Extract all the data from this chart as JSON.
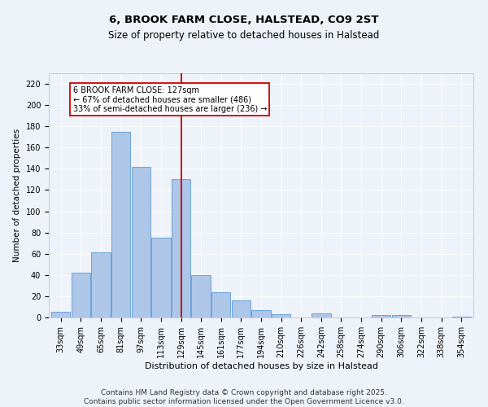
{
  "title": "6, BROOK FARM CLOSE, HALSTEAD, CO9 2ST",
  "subtitle": "Size of property relative to detached houses in Halstead",
  "xlabel": "Distribution of detached houses by size in Halstead",
  "ylabel": "Number of detached properties",
  "categories": [
    "33sqm",
    "49sqm",
    "65sqm",
    "81sqm",
    "97sqm",
    "113sqm",
    "129sqm",
    "145sqm",
    "161sqm",
    "177sqm",
    "194sqm",
    "210sqm",
    "226sqm",
    "242sqm",
    "258sqm",
    "274sqm",
    "290sqm",
    "306sqm",
    "322sqm",
    "338sqm",
    "354sqm"
  ],
  "values": [
    5,
    42,
    61,
    175,
    142,
    75,
    130,
    40,
    24,
    16,
    7,
    3,
    0,
    4,
    0,
    0,
    2,
    2,
    0,
    0,
    1
  ],
  "bar_color": "#aec6e8",
  "bar_edge_color": "#5b9bd5",
  "vline_x": 6.0,
  "vline_color": "#cc0000",
  "annotation_text": "6 BROOK FARM CLOSE: 127sqm\n← 67% of detached houses are smaller (486)\n33% of semi-detached houses are larger (236) →",
  "annotation_box_color": "#cc0000",
  "ylim": [
    0,
    230
  ],
  "yticks": [
    0,
    20,
    40,
    60,
    80,
    100,
    120,
    140,
    160,
    180,
    200,
    220
  ],
  "background_color": "#eef2f9",
  "plot_bg_color": "#eef2f9",
  "footer": "Contains HM Land Registry data © Crown copyright and database right 2025.\nContains public sector information licensed under the Open Government Licence v3.0.",
  "title_fontsize": 9.5,
  "subtitle_fontsize": 8.5,
  "xlabel_fontsize": 8,
  "ylabel_fontsize": 7.5,
  "tick_fontsize": 7,
  "footer_fontsize": 6.5,
  "ann_fontsize": 7
}
